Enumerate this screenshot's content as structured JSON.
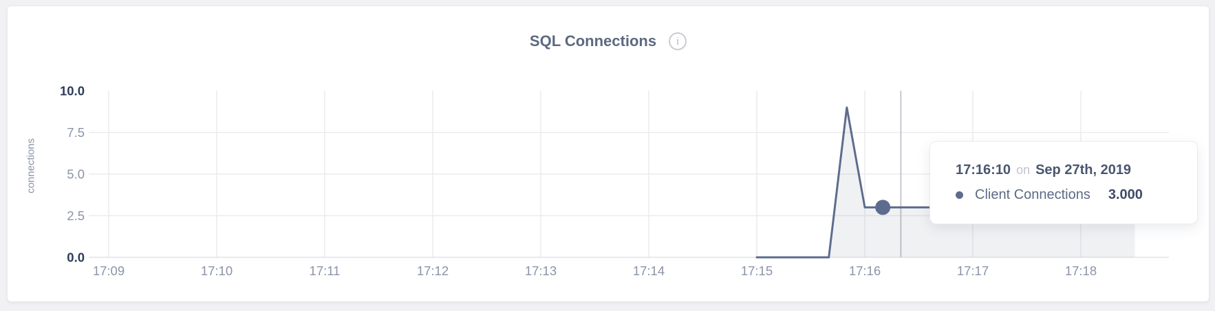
{
  "card": {
    "title": "SQL Connections",
    "info_icon_glyph": "i"
  },
  "tooltip": {
    "time": "17:16:10",
    "connector": "on",
    "date": "Sep 27th, 2019",
    "series_label": "Client Connections",
    "value": "3.000"
  },
  "chart_data": {
    "type": "area",
    "title": "SQL Connections",
    "ylabel": "connections",
    "xlabel": "",
    "ylim": [
      0,
      10
    ],
    "grid": true,
    "legend": "none",
    "y_ticks": [
      {
        "label": "0.0",
        "value": 0,
        "emphasis": true
      },
      {
        "label": "2.5",
        "value": 2.5,
        "emphasis": false
      },
      {
        "label": "5.0",
        "value": 5,
        "emphasis": false
      },
      {
        "label": "7.5",
        "value": 7.5,
        "emphasis": false
      },
      {
        "label": "10.0",
        "value": 10,
        "emphasis": true
      }
    ],
    "x_ticks": [
      "17:09",
      "17:10",
      "17:11",
      "17:12",
      "17:13",
      "17:14",
      "17:15",
      "17:16",
      "17:17",
      "17:18"
    ],
    "series": [
      {
        "name": "Client Connections",
        "color": "#5d6c8e",
        "fill": "rgba(101,113,140,0.10)",
        "points": [
          [
            "17:15:00",
            0
          ],
          [
            "17:15:40",
            0
          ],
          [
            "17:15:50",
            9
          ],
          [
            "17:16:00",
            3
          ],
          [
            "17:18:30",
            3
          ]
        ]
      }
    ],
    "hover": {
      "time": "17:16:10",
      "value": 3.0,
      "date": "Sep 27th, 2019",
      "crosshair_time": "17:16:20"
    },
    "colors": {
      "grid": "#ebebee",
      "baseline": "#e4e4e8",
      "crosshair": "#c5c8cf",
      "tick": "#8a94a8",
      "tick_emphasis": "#2e3b5a"
    }
  }
}
